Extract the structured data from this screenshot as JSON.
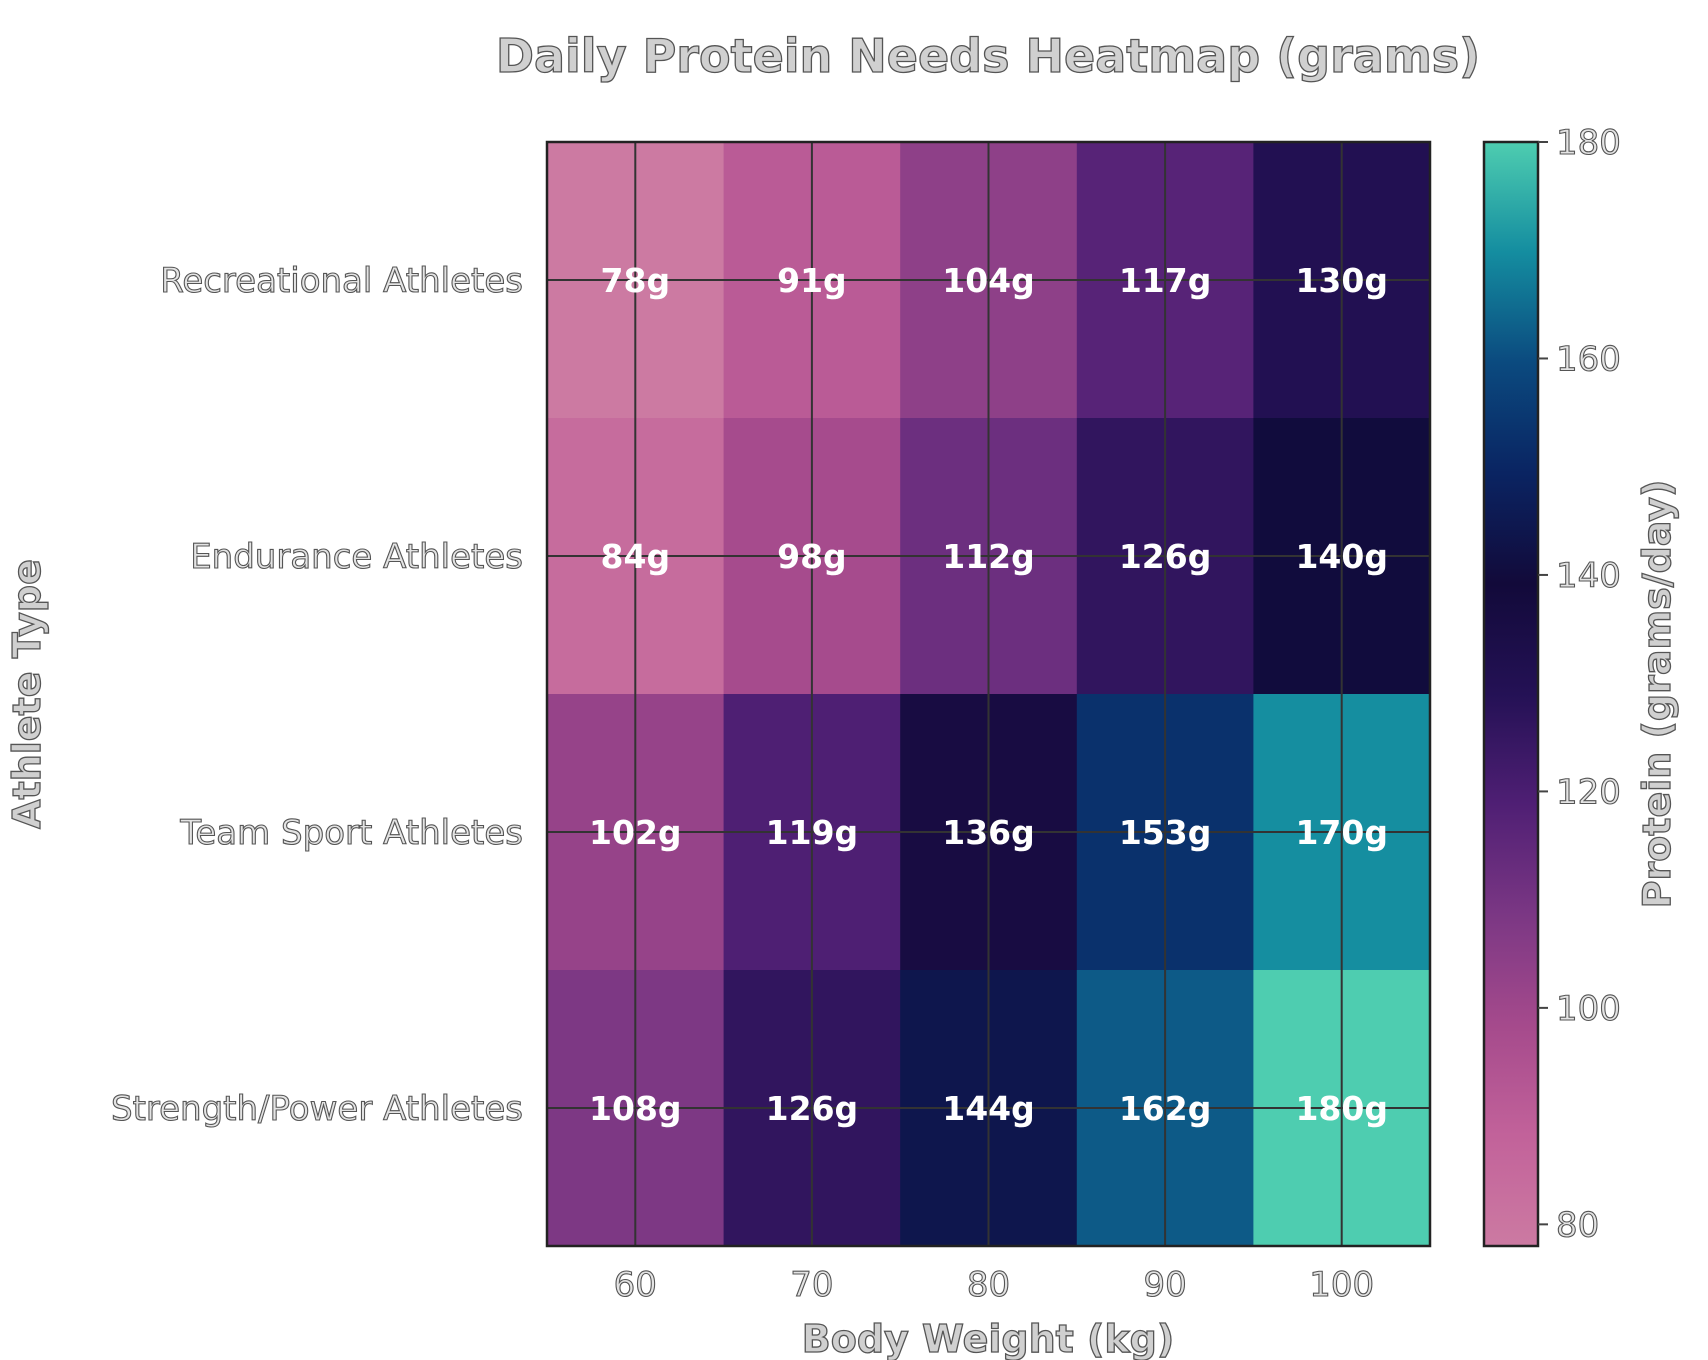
{
  "chart_data": {
    "type": "heatmap",
    "title": "Daily Protein Needs Heatmap (grams)",
    "xlabel": "Body Weight (kg)",
    "ylabel": "Athlete Type",
    "x": [
      "60",
      "70",
      "80",
      "90",
      "100"
    ],
    "y": [
      "Recreational Athletes",
      "Endurance Athletes",
      "Team Sport Athletes",
      "Strength/Power Athletes"
    ],
    "values": [
      [
        78,
        91,
        104,
        117,
        130
      ],
      [
        84,
        98,
        112,
        126,
        140
      ],
      [
        102,
        119,
        136,
        153,
        170
      ],
      [
        108,
        126,
        144,
        162,
        180
      ]
    ],
    "cell_labels": [
      [
        "78g",
        "91g",
        "104g",
        "117g",
        "130g"
      ],
      [
        "84g",
        "98g",
        "112g",
        "126g",
        "140g"
      ],
      [
        "102g",
        "119g",
        "136g",
        "153g",
        "170g"
      ],
      [
        "108g",
        "126g",
        "144g",
        "162g",
        "180g"
      ]
    ],
    "colorbar": {
      "label": "Protein (grams/day)",
      "range": [
        78,
        180
      ],
      "ticks": [
        "80",
        "100",
        "120",
        "140",
        "160",
        "180"
      ],
      "colors": [
        "#cc7aa2",
        "#c2629a",
        "#a54a8c",
        "#7b3784",
        "#4f1f74",
        "#241155",
        "#120a3a",
        "#0a2462",
        "#0b4a7f",
        "#148da0",
        "#4ecdb0"
      ]
    },
    "grid": true,
    "colorbar_position": "right"
  }
}
